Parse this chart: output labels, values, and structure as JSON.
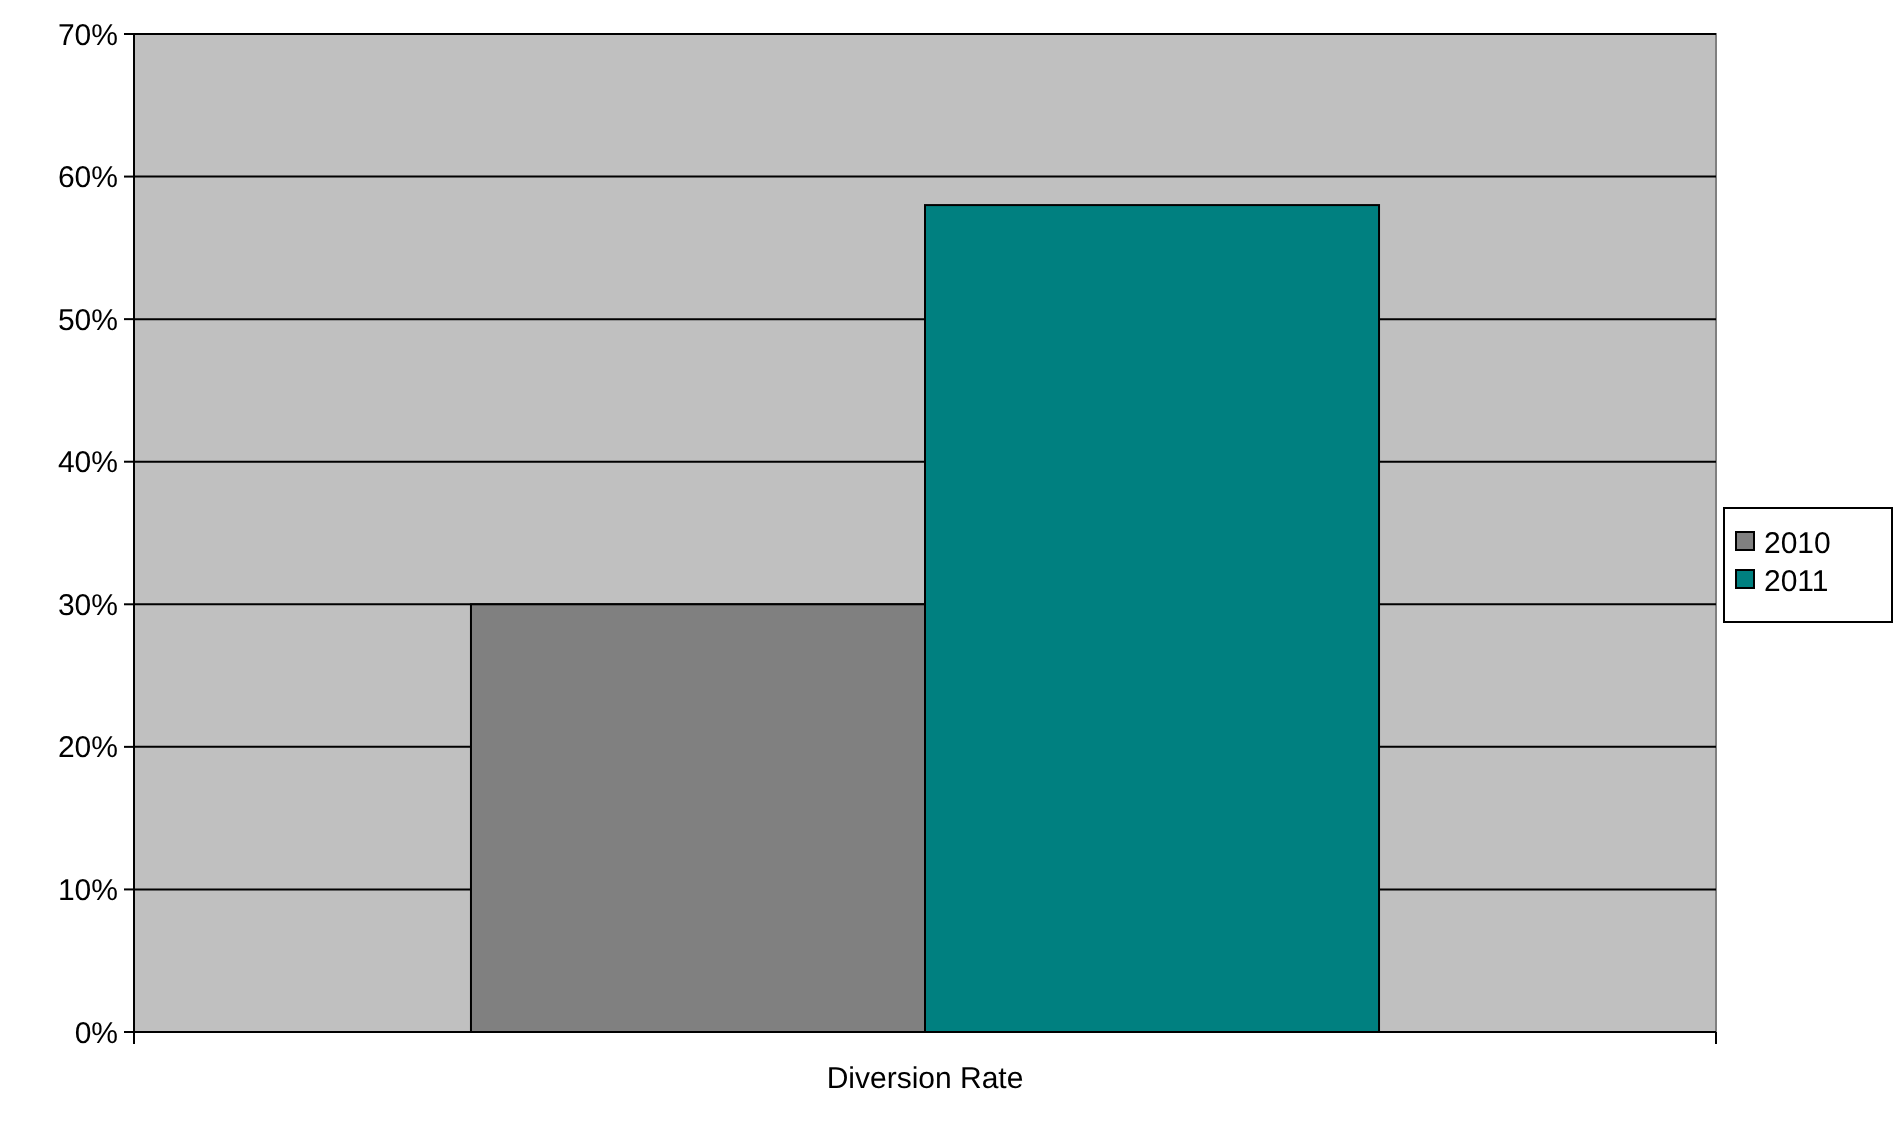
{
  "chart_data": {
    "type": "bar",
    "categories": [
      "Diversion Rate"
    ],
    "series": [
      {
        "name": "2010",
        "color": "#808080",
        "values": [
          0.3
        ]
      },
      {
        "name": "2011",
        "color": "#008080",
        "values": [
          0.58
        ]
      }
    ],
    "ylim": [
      0,
      0.7
    ],
    "yticks": [
      {
        "value": 0,
        "label": "0%"
      },
      {
        "value": 0.1,
        "label": "10%"
      },
      {
        "value": 0.2,
        "label": "20%"
      },
      {
        "value": 0.3,
        "label": "30%"
      },
      {
        "value": 0.4,
        "label": "40%"
      },
      {
        "value": 0.5,
        "label": "50%"
      },
      {
        "value": 0.6,
        "label": "60%"
      },
      {
        "value": 0.7,
        "label": "70%"
      }
    ],
    "grid": "y",
    "legend": "right"
  }
}
